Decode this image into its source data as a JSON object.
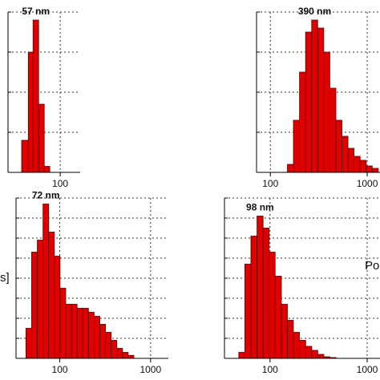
{
  "chart_data": [
    {
      "type": "histogram",
      "title": "57 nm",
      "color": "#e00000",
      "log_x": true,
      "grid": true,
      "bins": [
        38,
        44.9,
        50.6,
        58.2,
        67,
        77
      ],
      "counts": [
        0.8,
        3.0,
        3.8,
        1.7,
        0.15
      ],
      "xlim": [
        27,
        165
      ],
      "xticks": [
        100
      ],
      "ylim": [
        0,
        4
      ],
      "yticks": [
        0,
        1,
        2,
        3,
        4
      ]
    },
    {
      "type": "histogram",
      "title": "390 nm",
      "color": "#e00000",
      "log_x": true,
      "grid": true,
      "bins": [
        150,
        173,
        200,
        231,
        267,
        308,
        356,
        411,
        475,
        548,
        633,
        731,
        845,
        976,
        1127,
        1302
      ],
      "counts": [
        0.2,
        1.3,
        2.5,
        3.5,
        3.8,
        3.6,
        3.0,
        2.1,
        1.3,
        0.9,
        0.6,
        0.4,
        0.3,
        0.16,
        0.1
      ],
      "xlim": [
        72,
        1355
      ],
      "xticks": [
        100,
        1000
      ],
      "ylim": [
        0,
        4
      ],
      "yticks": [
        0,
        1,
        2,
        3,
        4
      ]
    },
    {
      "type": "histogram",
      "title": "72 nm",
      "ylabel": "s]",
      "color": "#e00000",
      "log_x": true,
      "grid": true,
      "bins": [
        42.4,
        49,
        56.6,
        65.4,
        75.5,
        87.2,
        100.7,
        116.3,
        134.3,
        155.2,
        179.2,
        207,
        239,
        276,
        319,
        368,
        425,
        491,
        567,
        655
      ],
      "counts": [
        1.5,
        5.3,
        5.9,
        7.7,
        6.3,
        5.1,
        3.5,
        2.7,
        2.7,
        2.5,
        2.5,
        2.3,
        2.1,
        1.7,
        1.3,
        0.9,
        0.5,
        0.3,
        0.15
      ],
      "xlim": [
        33,
        1570
      ],
      "xticks": [
        100,
        1000
      ],
      "ylim": [
        0,
        8
      ],
      "yticks": [
        0,
        1,
        2,
        3,
        4,
        5,
        6,
        7,
        8
      ]
    },
    {
      "type": "histogram",
      "title": "98 nm",
      "annotation": "Po",
      "color": "#e00000",
      "log_x": true,
      "grid": true,
      "bins": [
        47.7,
        55.1,
        63.6,
        73.5,
        84.9,
        98,
        113,
        131,
        151,
        174,
        201,
        233,
        269,
        310,
        358,
        414,
        478
      ],
      "counts": [
        0.3,
        4.7,
        6.1,
        7.1,
        6.5,
        5.3,
        4.1,
        2.7,
        1.9,
        1.3,
        0.9,
        0.6,
        0.4,
        0.2,
        0.08,
        0.04
      ],
      "xlim": [
        34,
        1355
      ],
      "xticks": [
        100,
        1000
      ],
      "ylim": [
        0,
        8
      ],
      "yticks": [
        0,
        1,
        2,
        3,
        4,
        5,
        6,
        7,
        8
      ]
    }
  ]
}
